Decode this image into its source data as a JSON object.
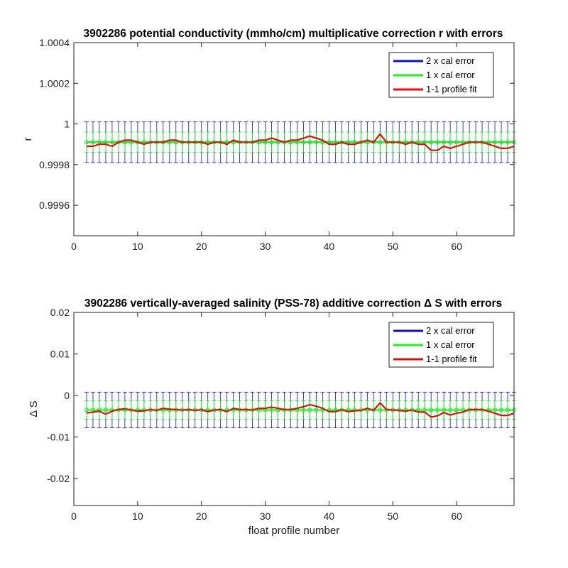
{
  "chart_data": [
    {
      "type": "line",
      "title": "3902286 potential conductivity (mmho/cm) multiplicative correction r with errors",
      "xlabel": "",
      "ylabel": "r",
      "xlim": [
        0,
        69
      ],
      "ylim": [
        0.99945,
        1.0004
      ],
      "xticks": [
        0,
        10,
        20,
        30,
        40,
        50,
        60
      ],
      "xtick_labels": [
        "0",
        "10",
        "20",
        "30",
        "40",
        "50",
        "60"
      ],
      "yticks": [
        0.9996,
        0.9998,
        1.0,
        1.0002,
        1.0004
      ],
      "ytick_labels": [
        "0.9996",
        "0.9998",
        "1",
        "1.0002",
        "1.0004"
      ],
      "grid": false,
      "legend_position": "top-right",
      "x": [
        2,
        3,
        4,
        5,
        6,
        7,
        8,
        9,
        10,
        11,
        12,
        13,
        14,
        15,
        16,
        17,
        18,
        19,
        20,
        21,
        22,
        23,
        24,
        25,
        26,
        27,
        28,
        29,
        30,
        31,
        32,
        33,
        34,
        35,
        36,
        37,
        38,
        39,
        40,
        41,
        42,
        43,
        44,
        45,
        46,
        47,
        48,
        49,
        50,
        51,
        52,
        53,
        54,
        55,
        56,
        57,
        58,
        59,
        60,
        61,
        62,
        63,
        64,
        65,
        66,
        67,
        68,
        69
      ],
      "series": [
        {
          "name": "2 x cal error",
          "color": "#1010c0",
          "center": 0.99991,
          "err": 0.0001
        },
        {
          "name": "1 x cal error",
          "color": "#22ee22",
          "center": 0.99991,
          "err": 5e-05
        },
        {
          "name": "1-1 profile fit",
          "color": "#dd1010",
          "values": [
            0.99989,
            0.99989,
            0.9999,
            0.9999,
            0.99989,
            0.99991,
            0.99992,
            0.99992,
            0.99991,
            0.9999,
            0.99991,
            0.99991,
            0.99991,
            0.99992,
            0.99992,
            0.99991,
            0.99991,
            0.99991,
            0.99991,
            0.9999,
            0.99991,
            0.99991,
            0.9999,
            0.99992,
            0.99991,
            0.99991,
            0.99991,
            0.99992,
            0.99992,
            0.99993,
            0.99992,
            0.99991,
            0.99992,
            0.99992,
            0.99993,
            0.99994,
            0.99993,
            0.99992,
            0.9999,
            0.9999,
            0.99991,
            0.9999,
            0.9999,
            0.99991,
            0.99992,
            0.99991,
            0.99995,
            0.99991,
            0.99991,
            0.99991,
            0.9999,
            0.99991,
            0.9999,
            0.9999,
            0.99987,
            0.99987,
            0.99989,
            0.99988,
            0.99989,
            0.9999,
            0.99991,
            0.99991,
            0.99991,
            0.9999,
            0.99989,
            0.99988,
            0.99988,
            0.99989
          ]
        }
      ]
    },
    {
      "type": "line",
      "title": "3902286 vertically-averaged salinity (PSS-78) additive correction Δ S with errors",
      "xlabel": "float profile number",
      "ylabel": "Δ S",
      "xlim": [
        0,
        69
      ],
      "ylim": [
        -0.0265,
        0.02
      ],
      "xticks": [
        0,
        10,
        20,
        30,
        40,
        50,
        60
      ],
      "xtick_labels": [
        "0",
        "10",
        "20",
        "30",
        "40",
        "50",
        "60"
      ],
      "yticks": [
        -0.02,
        -0.01,
        0,
        0.01,
        0.02
      ],
      "ytick_labels": [
        "-0.02",
        "-0.01",
        "0",
        "0.01",
        "0.02"
      ],
      "grid": false,
      "legend_position": "top-right",
      "x": [
        2,
        3,
        4,
        5,
        6,
        7,
        8,
        9,
        10,
        11,
        12,
        13,
        14,
        15,
        16,
        17,
        18,
        19,
        20,
        21,
        22,
        23,
        24,
        25,
        26,
        27,
        28,
        29,
        30,
        31,
        32,
        33,
        34,
        35,
        36,
        37,
        38,
        39,
        40,
        41,
        42,
        43,
        44,
        45,
        46,
        47,
        48,
        49,
        50,
        51,
        52,
        53,
        54,
        55,
        56,
        57,
        58,
        59,
        60,
        61,
        62,
        63,
        64,
        65,
        66,
        67,
        68,
        69
      ],
      "series": [
        {
          "name": "2 x cal error",
          "color": "#1010c0",
          "center": -0.0035,
          "err": 0.0043
        },
        {
          "name": "1 x cal error",
          "color": "#22ee22",
          "center": -0.0035,
          "err": 0.0022
        },
        {
          "name": "1-1 profile fit",
          "color": "#dd1010",
          "values": [
            -0.0042,
            -0.004,
            -0.0038,
            -0.0045,
            -0.0038,
            -0.0034,
            -0.0032,
            -0.0035,
            -0.0038,
            -0.0037,
            -0.0034,
            -0.0036,
            -0.0031,
            -0.0033,
            -0.0034,
            -0.0035,
            -0.0034,
            -0.0036,
            -0.0034,
            -0.0039,
            -0.0035,
            -0.0034,
            -0.0039,
            -0.0031,
            -0.0034,
            -0.0034,
            -0.0035,
            -0.0031,
            -0.0031,
            -0.0028,
            -0.0031,
            -0.0034,
            -0.0034,
            -0.0031,
            -0.0027,
            -0.0022,
            -0.0026,
            -0.0031,
            -0.0039,
            -0.0039,
            -0.0034,
            -0.0039,
            -0.0037,
            -0.0036,
            -0.0031,
            -0.0036,
            -0.0018,
            -0.0034,
            -0.0035,
            -0.0036,
            -0.0038,
            -0.0035,
            -0.004,
            -0.004,
            -0.0052,
            -0.0049,
            -0.0041,
            -0.0047,
            -0.0043,
            -0.004,
            -0.0034,
            -0.0034,
            -0.0034,
            -0.0038,
            -0.0043,
            -0.0048,
            -0.0048,
            -0.0043
          ]
        }
      ]
    }
  ]
}
